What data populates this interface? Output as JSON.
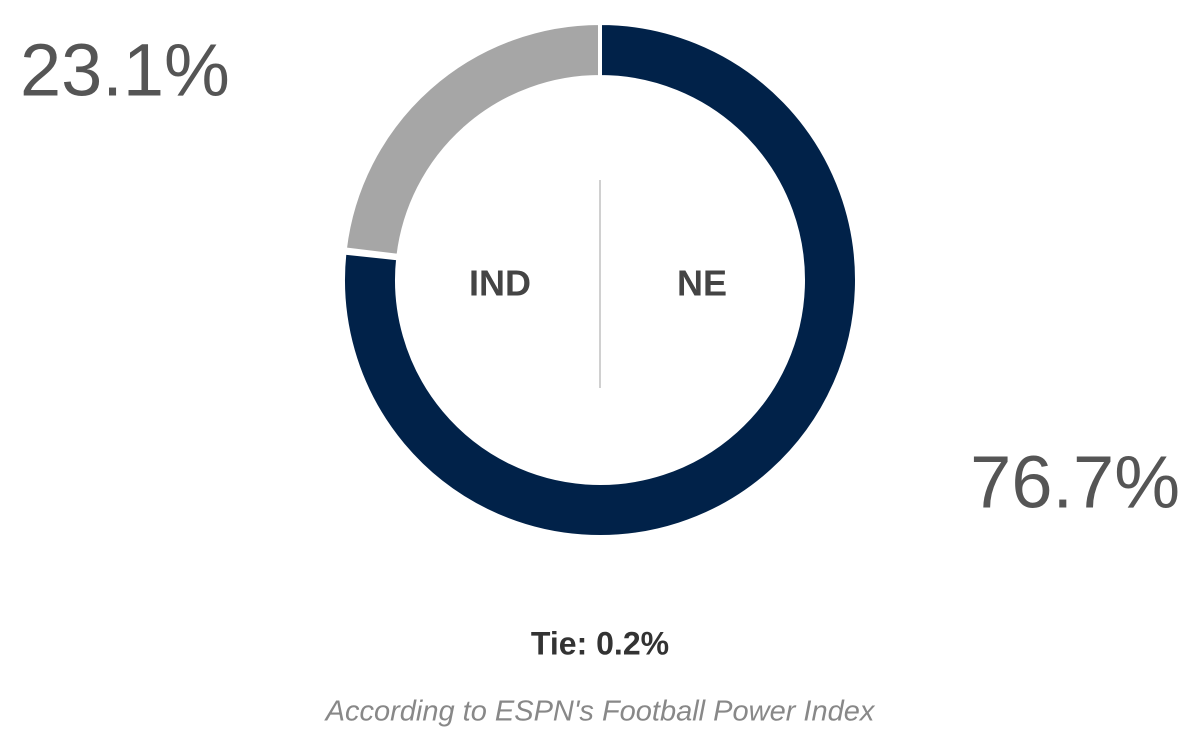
{
  "chart_data": {
    "type": "donut",
    "categories": [
      "IND",
      "NE"
    ],
    "values": [
      23.1,
      76.7
    ],
    "value_labels": [
      "23.1%",
      "76.7%"
    ],
    "colors": [
      "#a6a6a6",
      "#012249"
    ],
    "tie_label": "Tie: 0.2%",
    "footnote": "According to ESPN's Football Power Index"
  }
}
